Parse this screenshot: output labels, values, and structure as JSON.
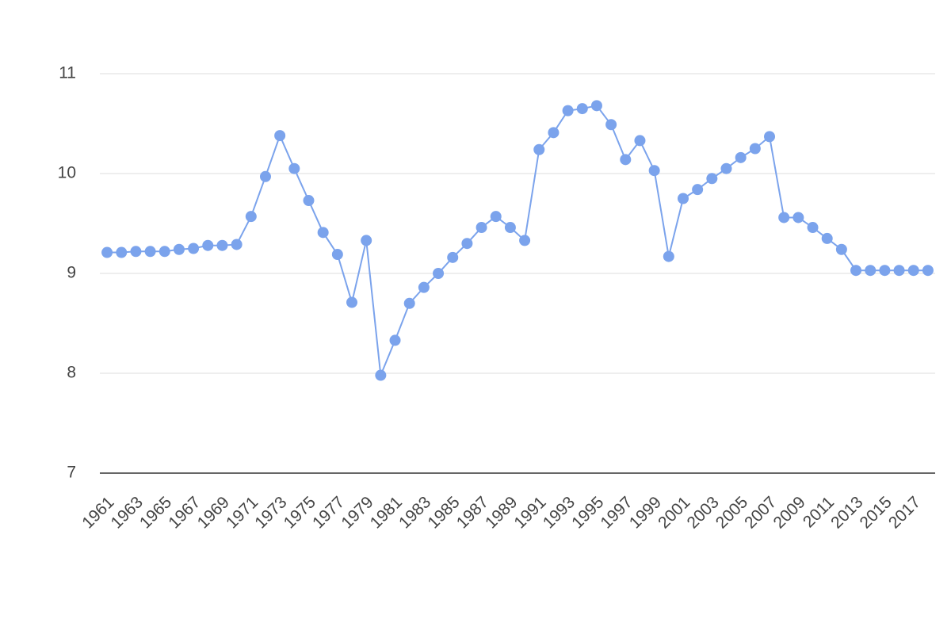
{
  "chart_data": {
    "type": "line",
    "categories": [
      "1961",
      null,
      "1963",
      null,
      "1965",
      null,
      "1967",
      null,
      "1969",
      null,
      "1971",
      null,
      "1973",
      null,
      "1975",
      null,
      "1977",
      null,
      "1979",
      null,
      "1981",
      null,
      "1983",
      null,
      "1985",
      null,
      "1987",
      null,
      "1989",
      null,
      "1991",
      null,
      "1993",
      null,
      "1995",
      null,
      "1997",
      null,
      "1999",
      null,
      "2001",
      null,
      "2003",
      null,
      "2005",
      null,
      "2007",
      null,
      "2009",
      null,
      "2011",
      null,
      "2013",
      null,
      "2015",
      null,
      "2017",
      null
    ],
    "series": [
      {
        "color": "#7ba3ec",
        "values": [
          9.21,
          9.21,
          9.22,
          9.22,
          9.22,
          9.24,
          9.25,
          9.28,
          9.28,
          9.29,
          9.57,
          9.97,
          10.38,
          10.05,
          9.73,
          9.41,
          9.19,
          8.71,
          9.33,
          7.98,
          8.33,
          8.7,
          8.86,
          9.0,
          9.16,
          9.3,
          9.46,
          9.57,
          9.46,
          9.33,
          10.24,
          10.41,
          10.63,
          10.65,
          10.68,
          10.49,
          10.14,
          10.33,
          10.03,
          9.17,
          9.75,
          9.84,
          9.95,
          10.05,
          10.16,
          10.25,
          10.37,
          9.56,
          9.56,
          9.46,
          9.35,
          9.24,
          9.03,
          9.03,
          9.03,
          9.03,
          9.03,
          9.03
        ]
      }
    ],
    "ylim": [
      7,
      11
    ],
    "yticks": [
      7,
      8,
      9,
      10,
      11
    ],
    "grid": true
  }
}
